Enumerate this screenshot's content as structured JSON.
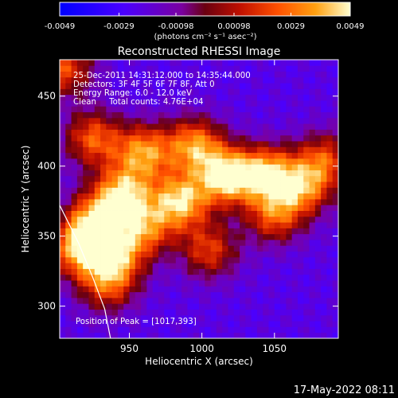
{
  "chart_data": {
    "type": "heatmap",
    "title": "Reconstructed RHESSI Image",
    "xlabel": "Heliocentric X (arcsec)",
    "ylabel": "Heliocentric Y (arcsec)",
    "xlim": [
      902,
      1094
    ],
    "ylim": [
      277,
      476
    ],
    "xticks": [
      950,
      1000,
      1050
    ],
    "yticks": [
      300,
      350,
      400,
      450
    ],
    "colorbar": {
      "min": -0.0049,
      "max": 0.0049,
      "ticks": [
        "-0.0049",
        "-0.0029",
        "-0.00098",
        "0.00098",
        "0.0029",
        "0.0049"
      ],
      "tick_values": [
        -0.0049,
        -0.0029,
        -0.00098,
        0.00098,
        0.0029,
        0.0049
      ],
      "unit_label": "(photons cm⁻² s⁻¹ asec⁻²)"
    },
    "annotations": [
      "25-Dec-2011 14:31:12.000 to 14:35:44.000",
      "Detectors: 3F 4F 5F 6F 7F 8F, Att 0",
      "Energy Range: 6.0 - 12.0 keV",
      "Clean     Total counts: 4.76E+04"
    ],
    "peak_label": "Position of Peak = [1017,393]",
    "peak": [
      1017,
      393
    ],
    "emission_sources": [
      {
        "x": 1017,
        "y": 393,
        "peak": 0.0049
      },
      {
        "x": 985,
        "y": 375,
        "peak": 0.0042
      },
      {
        "x": 945,
        "y": 380,
        "peak": 0.004
      },
      {
        "x": 1045,
        "y": 395,
        "peak": 0.0036
      },
      {
        "x": 960,
        "y": 410,
        "peak": 0.0033
      },
      {
        "x": 995,
        "y": 415,
        "peak": 0.0032
      },
      {
        "x": 925,
        "y": 360,
        "peak": 0.0034
      },
      {
        "x": 915,
        "y": 340,
        "peak": 0.003
      },
      {
        "x": 940,
        "y": 335,
        "peak": 0.0026
      },
      {
        "x": 1070,
        "y": 385,
        "peak": 0.0026
      },
      {
        "x": 925,
        "y": 420,
        "peak": 0.0024
      },
      {
        "x": 1050,
        "y": 365,
        "peak": 0.0022
      },
      {
        "x": 960,
        "y": 355,
        "peak": 0.0024
      },
      {
        "x": 1005,
        "y": 340,
        "peak": 0.0018
      },
      {
        "x": 935,
        "y": 315,
        "peak": 0.0016
      },
      {
        "x": 905,
        "y": 470,
        "peak": 0.0022
      },
      {
        "x": 1085,
        "y": 405,
        "peak": 0.0018
      }
    ],
    "limb_curve": [
      [
        902,
        372
      ],
      [
        915,
        345
      ],
      [
        925,
        320
      ],
      [
        933,
        298
      ],
      [
        937,
        277
      ]
    ]
  },
  "footer_date": "17-May-2022 08:11"
}
